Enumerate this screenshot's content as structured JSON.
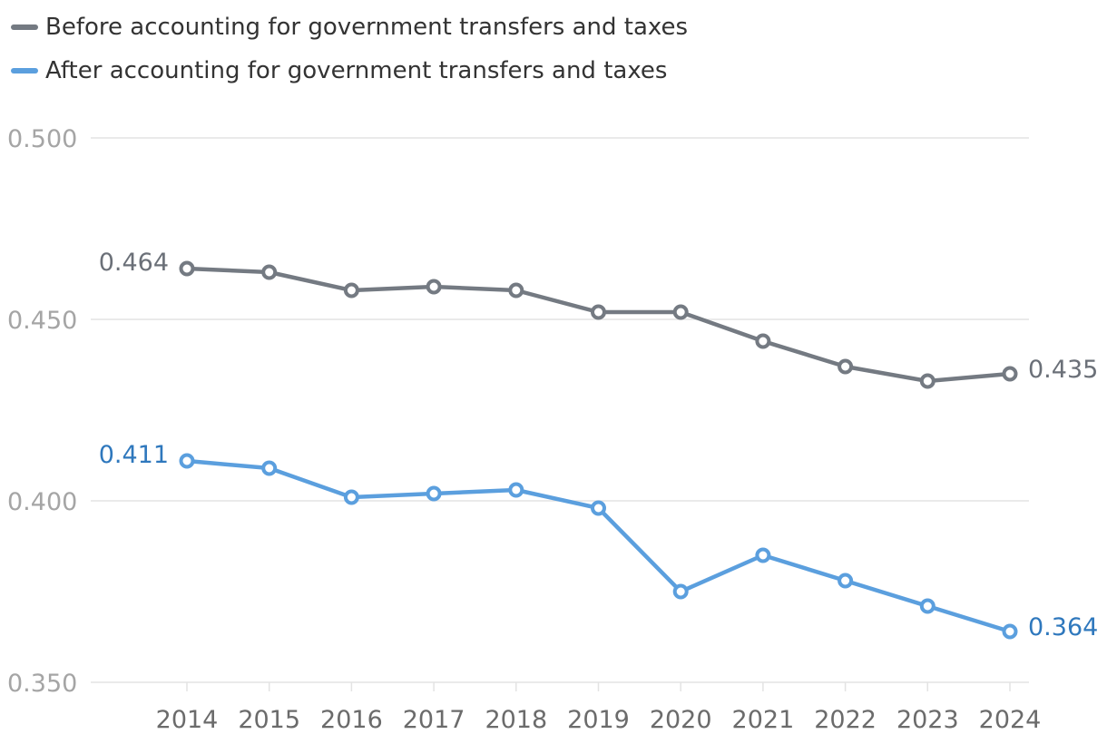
{
  "chart_data": {
    "type": "line",
    "title": "",
    "xlabel": "",
    "ylabel": "",
    "x": [
      2014,
      2015,
      2016,
      2017,
      2018,
      2019,
      2020,
      2021,
      2022,
      2023,
      2024
    ],
    "ylim": [
      0.35,
      0.5
    ],
    "y_ticks": [
      "0.500",
      "0.450",
      "0.400",
      "0.350"
    ],
    "y_tick_values": [
      0.5,
      0.45,
      0.4,
      0.35
    ],
    "x_tick_labels": [
      "2014",
      "2015",
      "2016",
      "2017",
      "2018",
      "2019",
      "2020",
      "2021",
      "2022",
      "2023",
      "2024"
    ],
    "grid": true,
    "legend_position": "top-left",
    "series": [
      {
        "name": "Before accounting for government transfers and taxes",
        "color": "#747a82",
        "label_color": "#6b7078",
        "values": [
          0.464,
          0.463,
          0.458,
          0.459,
          0.458,
          0.452,
          0.452,
          0.444,
          0.437,
          0.433,
          0.435
        ],
        "start_label": "0.464",
        "end_label": "0.435"
      },
      {
        "name": "After accounting for government transfers and taxes",
        "color": "#5b9fde",
        "label_color": "#2f78bd",
        "values": [
          0.411,
          0.409,
          0.401,
          0.402,
          0.403,
          0.398,
          0.375,
          0.385,
          0.378,
          0.371,
          0.364
        ],
        "start_label": "0.411",
        "end_label": "0.364"
      }
    ],
    "colors": {
      "grid": "#e3e3e3",
      "y_tick_text": "#a5a5a5",
      "x_tick_text": "#6b6b6b",
      "axis": "#e3e3e3"
    }
  }
}
